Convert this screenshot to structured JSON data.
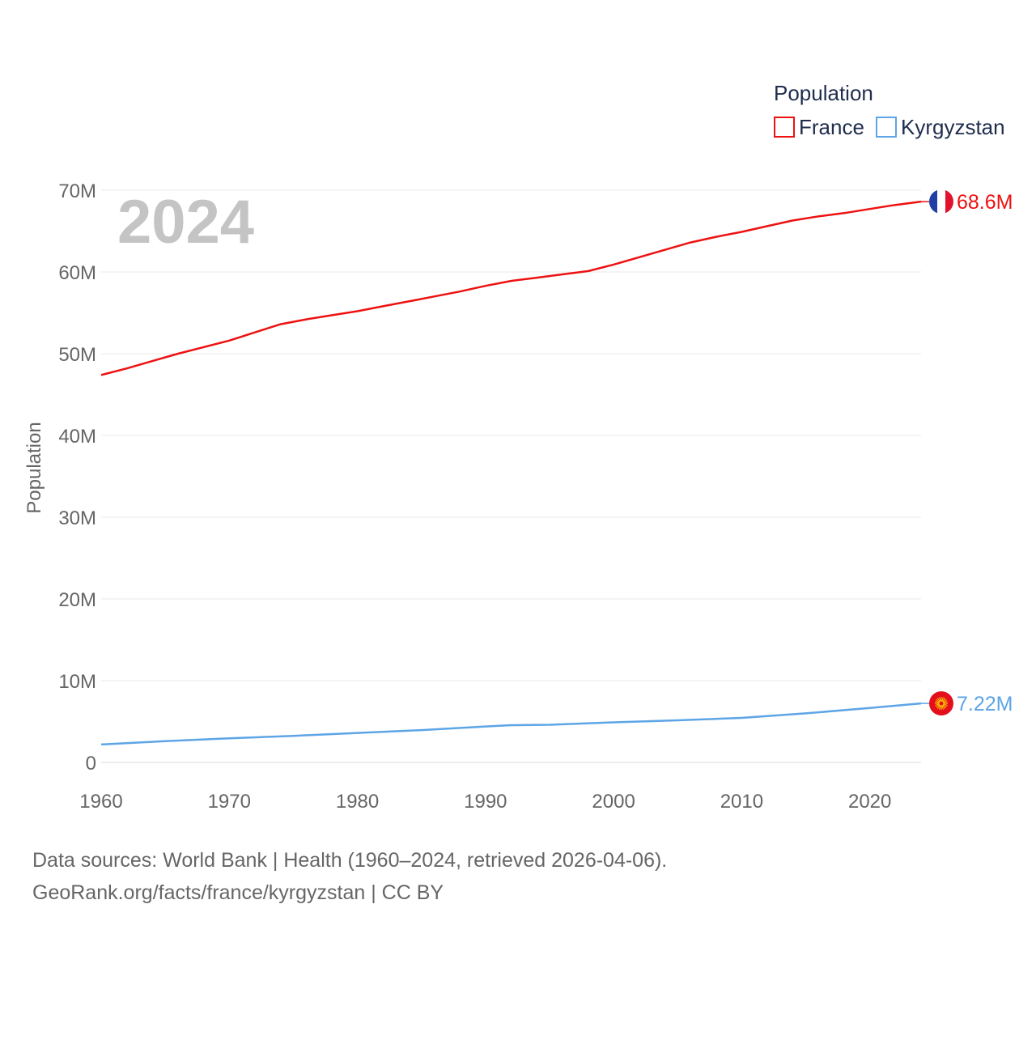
{
  "chart_data": {
    "type": "line",
    "year_badge": "2024",
    "ylabel": "Population",
    "xlabel": "",
    "xlim": [
      1960,
      2024
    ],
    "ylim": [
      0,
      70000000
    ],
    "y_ticks": [
      {
        "value": 0,
        "label": "0"
      },
      {
        "value": 10000000,
        "label": "10M"
      },
      {
        "value": 20000000,
        "label": "20M"
      },
      {
        "value": 30000000,
        "label": "30M"
      },
      {
        "value": 40000000,
        "label": "40M"
      },
      {
        "value": 50000000,
        "label": "50M"
      },
      {
        "value": 60000000,
        "label": "60M"
      },
      {
        "value": 70000000,
        "label": "70M"
      }
    ],
    "x_ticks": [
      {
        "value": 1960,
        "label": "1960"
      },
      {
        "value": 1970,
        "label": "1970"
      },
      {
        "value": 1980,
        "label": "1980"
      },
      {
        "value": 1990,
        "label": "1990"
      },
      {
        "value": 2000,
        "label": "2000"
      },
      {
        "value": 2010,
        "label": "2010"
      },
      {
        "value": 2020,
        "label": "2020"
      }
    ],
    "legend": {
      "title": "Population",
      "position": "top-right"
    },
    "series": [
      {
        "name": "France",
        "color": "#ee1111",
        "end_label": "68.6M",
        "flag": "france-flag",
        "points": [
          [
            1960,
            47400000
          ],
          [
            1962,
            48200000
          ],
          [
            1964,
            49100000
          ],
          [
            1966,
            50000000
          ],
          [
            1968,
            50800000
          ],
          [
            1970,
            51600000
          ],
          [
            1972,
            52600000
          ],
          [
            1974,
            53600000
          ],
          [
            1976,
            54200000
          ],
          [
            1978,
            54700000
          ],
          [
            1980,
            55200000
          ],
          [
            1982,
            55800000
          ],
          [
            1984,
            56400000
          ],
          [
            1986,
            57000000
          ],
          [
            1988,
            57600000
          ],
          [
            1990,
            58300000
          ],
          [
            1992,
            58900000
          ],
          [
            1994,
            59300000
          ],
          [
            1996,
            59700000
          ],
          [
            1998,
            60100000
          ],
          [
            2000,
            60900000
          ],
          [
            2002,
            61800000
          ],
          [
            2004,
            62700000
          ],
          [
            2006,
            63600000
          ],
          [
            2008,
            64300000
          ],
          [
            2010,
            64900000
          ],
          [
            2012,
            65600000
          ],
          [
            2014,
            66300000
          ],
          [
            2016,
            66800000
          ],
          [
            2018,
            67200000
          ],
          [
            2020,
            67700000
          ],
          [
            2022,
            68200000
          ],
          [
            2024,
            68600000
          ]
        ]
      },
      {
        "name": "Kyrgyzstan",
        "color": "#5da5e6",
        "end_label": "7.22M",
        "flag": "kyrgyzstan-flag",
        "points": [
          [
            1960,
            2200000
          ],
          [
            1965,
            2600000
          ],
          [
            1970,
            2950000
          ],
          [
            1975,
            3250000
          ],
          [
            1980,
            3600000
          ],
          [
            1985,
            3950000
          ],
          [
            1990,
            4400000
          ],
          [
            1992,
            4550000
          ],
          [
            1995,
            4600000
          ],
          [
            2000,
            4900000
          ],
          [
            2005,
            5150000
          ],
          [
            2010,
            5450000
          ],
          [
            2015,
            6000000
          ],
          [
            2020,
            6650000
          ],
          [
            2024,
            7220000
          ]
        ]
      }
    ]
  },
  "footer": {
    "line1": "Data sources: World Bank | Health (1960–2024, retrieved 2026-04-06).",
    "line2": "GeoRank.org/facts/france/kyrgyzstan | CC BY"
  }
}
